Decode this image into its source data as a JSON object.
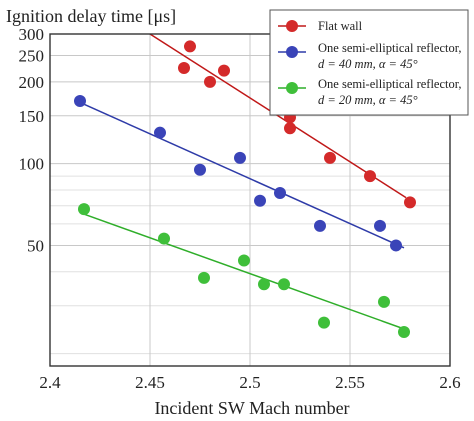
{
  "chart_data": {
    "type": "scatter",
    "ylabel": "Ignition delay time [μs]",
    "xlabel": "Incident SW Mach number",
    "xlim": [
      2.4,
      2.6
    ],
    "ylim": [
      18,
      300
    ],
    "yscale": "log",
    "grid": true,
    "legend_position": "top-right",
    "x_ticks": [
      "2.4",
      "2.45",
      "2.5",
      "2.55",
      "2.6"
    ],
    "y_ticks": [
      "50",
      "100",
      "150",
      "200",
      "250",
      "300"
    ],
    "series": [
      {
        "name": "Flat wall",
        "color": "#d42a2a",
        "line_color": "#c01818",
        "x": [
          2.47,
          2.467,
          2.487,
          2.48,
          2.52,
          2.52,
          2.54,
          2.56,
          2.58
        ],
        "y": [
          270,
          225,
          220,
          200,
          148,
          135,
          105,
          90,
          72
        ],
        "fit": [
          [
            2.45,
            300
          ],
          [
            2.578,
            75
          ]
        ]
      },
      {
        "name": "One semi-elliptical reflector, d = 40 mm, α = 45°",
        "name_lines": [
          "One semi-elliptical reflector,",
          "d = 40 mm, α = 45°"
        ],
        "color": "#3a44b8",
        "line_color": "#2e3ba8",
        "x": [
          2.415,
          2.455,
          2.475,
          2.495,
          2.505,
          2.515,
          2.535,
          2.565,
          2.573
        ],
        "y": [
          170,
          130,
          95,
          105,
          73,
          78,
          59,
          59,
          50
        ],
        "fit": [
          [
            2.415,
            168
          ],
          [
            2.577,
            49
          ]
        ]
      },
      {
        "name": "One semi-elliptical reflector, d = 20 mm, α = 45°",
        "name_lines": [
          "One semi-elliptical reflector,",
          "d = 20 mm, α = 45°"
        ],
        "color": "#3fbf3a",
        "line_color": "#2fae2a",
        "x": [
          2.417,
          2.457,
          2.477,
          2.497,
          2.507,
          2.517,
          2.537,
          2.567,
          2.577
        ],
        "y": [
          68,
          53,
          38,
          44,
          36,
          36,
          26,
          31,
          24
        ],
        "fit": [
          [
            2.415,
            66
          ],
          [
            2.578,
            24.5
          ]
        ]
      }
    ]
  }
}
